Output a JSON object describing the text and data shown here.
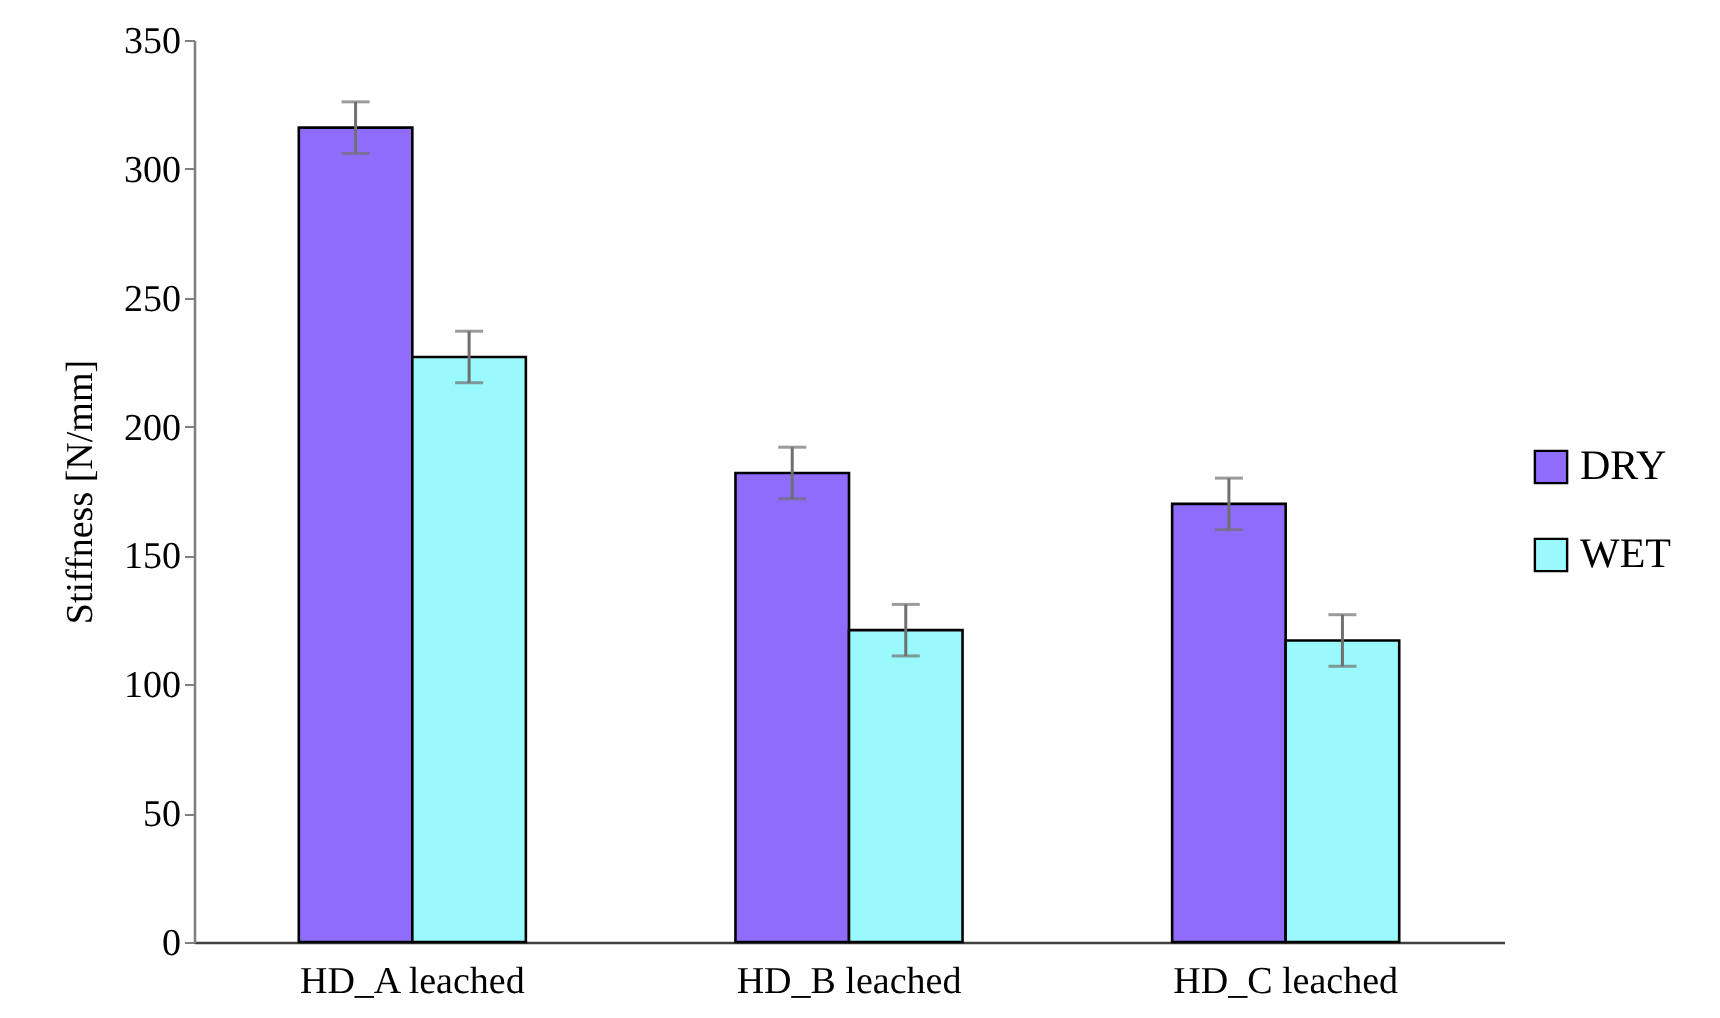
{
  "chart_data": {
    "type": "bar",
    "ylabel": "Stiffness [N/mm]",
    "categories": [
      "HD_A leached",
      "HD_B leached",
      "HD_C leached"
    ],
    "series": [
      {
        "name": "DRY",
        "color": "#8f6cfc",
        "values": [
          316,
          182,
          170
        ],
        "errors": [
          10,
          10,
          10
        ]
      },
      {
        "name": "WET",
        "color": "#99f9fc",
        "values": [
          227,
          121,
          117
        ],
        "errors": [
          10,
          10,
          10
        ]
      }
    ],
    "ylim": [
      0,
      350
    ],
    "yticks": [
      0,
      50,
      100,
      150,
      200,
      250,
      300,
      350
    ],
    "grid": false,
    "legend": "right"
  }
}
